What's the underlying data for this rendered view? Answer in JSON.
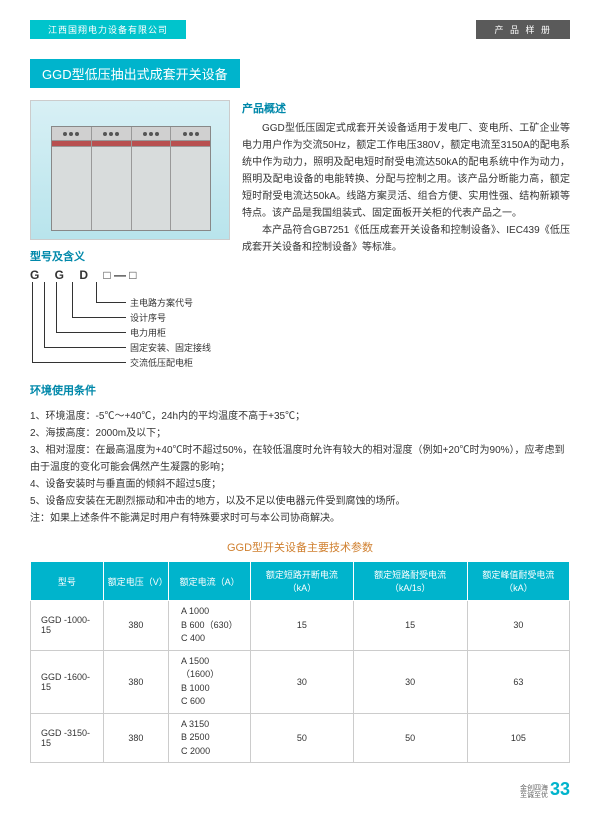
{
  "header": {
    "company": "江西国翔电力设备有限公司",
    "catalog": "产 品 样 册"
  },
  "title": "GGD型低压抽出式成套开关设备",
  "overview": {
    "heading": "产品概述",
    "p1": "GGD型低压固定式成套开关设备适用于发电厂、变电所、工矿企业等电力用户作为交流50Hz，额定工作电压380V，额定电流至3150A的配电系统中作为动力，照明及配电短时耐受电流达50kA的配电系统中作为动力，照明及配电设备的电能转换、分配与控制之用。该产品分断能力高，额定短时耐受电流达50kA。线路方案灵活、组合方便、实用性强、结构新颖等特点。该产品是我国组装式、固定面板开关柜的代表产品之一。",
    "p2": "本产品符合GB7251《低压成套开关设备和控制设备》、IEC439《低压成套开关设备和控制设备》等标准。"
  },
  "model": {
    "heading": "型号及含义",
    "letters": "G G D",
    "labels": [
      "主电路方案代号",
      "设计序号",
      "电力用柜",
      "固定安装、固定接线",
      "交流低压配电柜"
    ]
  },
  "env": {
    "heading": "环境使用条件",
    "items": [
      "1、环境温度：-5℃～+40℃，24h内的平均温度不高于+35℃；",
      "2、海拔高度：2000m及以下；",
      "3、相对湿度：在最高温度为+40℃时不超过50%，在较低温度时允许有较大的相对湿度（例如+20℃时为90%），应考虑到由于温度的变化可能会偶然产生凝露的影响；",
      "4、设备安装时与垂直面的倾斜不超过5度；",
      "5、设备应安装在无剧烈振动和冲击的地方，以及不足以使电器元件受到腐蚀的场所。",
      "注：如果上述条件不能满足时用户有特殊要求时可与本公司协商解决。"
    ]
  },
  "table": {
    "title": "GGD型开关设备主要技术参数",
    "headers": [
      "型号",
      "额定电压（V）",
      "额定电流（A）",
      "额定短路开断电流（kA）",
      "额定短路耐受电流（kA/1s）",
      "额定峰值耐受电流（kA）"
    ],
    "rows": [
      {
        "model": "GGD  -1000-15",
        "volt": "380",
        "cur": "A  1000\nB  600（630）\nC  400",
        "c1": "15",
        "c2": "15",
        "c3": "30"
      },
      {
        "model": "GGD  -1600-15",
        "volt": "380",
        "cur": "A  1500（1600）\nB  1000\nC  600",
        "c1": "30",
        "c2": "30",
        "c3": "63"
      },
      {
        "model": "GGD  -3150-15",
        "volt": "380",
        "cur": "A  3150\nB  2500\nC  2000",
        "c1": "50",
        "c2": "50",
        "c3": "105"
      }
    ]
  },
  "page": {
    "motto1": "金创四海",
    "motto2": "至诚至优",
    "num": "33"
  },
  "colors": {
    "accent": "#00b4cc",
    "header_dark": "#5a5a5a",
    "table_title": "#d08030"
  }
}
